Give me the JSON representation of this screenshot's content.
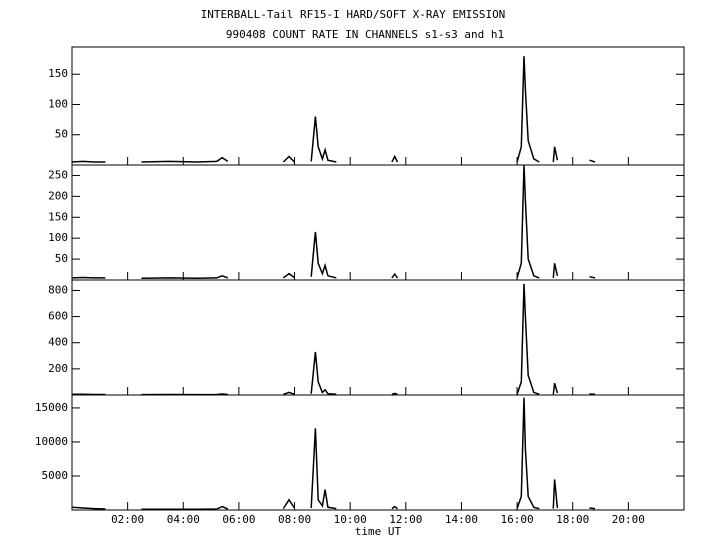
{
  "chart_data": [
    {
      "type": "line",
      "title": "INTERBALL-Tail RF15-I HARD/SOFT X-RAY EMISSION",
      "subtitle": "990408  COUNT RATE IN CHANNELS s1-s3 and h1",
      "color": "#000000",
      "x": [
        0.0,
        0.4,
        0.8,
        1.2,
        1.6,
        2.5,
        3.5,
        4.5,
        5.2,
        5.4,
        5.6,
        6.0,
        7.6,
        7.8,
        8.0,
        8.3,
        8.6,
        8.75,
        8.85,
        9.0,
        9.1,
        9.2,
        9.5,
        9.8,
        11.5,
        11.6,
        11.7,
        12.0,
        16.0,
        16.15,
        16.25,
        16.3,
        16.4,
        16.6,
        16.8,
        17.0,
        17.3,
        17.35,
        17.45,
        17.6,
        18.6,
        18.8
      ],
      "values": [
        5,
        6,
        5,
        5,
        null,
        5,
        6,
        5,
        6,
        12,
        6,
        null,
        5,
        14,
        5,
        null,
        6,
        80,
        30,
        10,
        25,
        8,
        5,
        null,
        5,
        14,
        5,
        null,
        5,
        30,
        180,
        125,
        40,
        10,
        5,
        null,
        5,
        30,
        8,
        null,
        8,
        5
      ],
      "xlim": [
        0,
        22
      ],
      "ylim": [
        0,
        195
      ],
      "yticks": [
        50,
        100,
        150
      ]
    },
    {
      "type": "line",
      "color": "#000000",
      "x": [
        0.0,
        0.4,
        0.8,
        1.2,
        1.6,
        2.5,
        3.5,
        4.5,
        5.2,
        5.4,
        5.6,
        6.0,
        7.6,
        7.8,
        8.0,
        8.3,
        8.6,
        8.75,
        8.85,
        9.0,
        9.1,
        9.2,
        9.5,
        9.8,
        11.5,
        11.6,
        11.7,
        12.0,
        16.0,
        16.15,
        16.25,
        16.3,
        16.4,
        16.6,
        16.8,
        17.0,
        17.3,
        17.35,
        17.45,
        17.6,
        18.6,
        18.8
      ],
      "values": [
        5,
        6,
        5,
        5,
        null,
        4,
        5,
        4,
        5,
        10,
        5,
        null,
        5,
        15,
        6,
        null,
        8,
        115,
        40,
        15,
        35,
        10,
        5,
        null,
        5,
        14,
        5,
        null,
        5,
        40,
        275,
        190,
        50,
        10,
        5,
        null,
        5,
        40,
        10,
        null,
        8,
        5
      ],
      "xlim": [
        0,
        22
      ],
      "ylim": [
        0,
        275
      ],
      "yticks": [
        50,
        100,
        150,
        200,
        250
      ]
    },
    {
      "type": "line",
      "color": "#000000",
      "x": [
        0.0,
        0.4,
        0.8,
        1.2,
        1.6,
        2.5,
        3.5,
        4.5,
        5.2,
        5.4,
        5.6,
        6.0,
        7.6,
        7.8,
        8.0,
        8.3,
        8.6,
        8.75,
        8.85,
        9.0,
        9.1,
        9.2,
        9.5,
        9.8,
        11.5,
        11.6,
        11.7,
        12.0,
        16.0,
        16.15,
        16.25,
        16.3,
        16.4,
        16.6,
        16.8,
        17.0,
        17.3,
        17.35,
        17.45,
        17.6,
        18.6,
        18.8
      ],
      "values": [
        5,
        5,
        4,
        4,
        null,
        3,
        4,
        3,
        4,
        8,
        4,
        null,
        5,
        20,
        6,
        null,
        10,
        330,
        100,
        20,
        40,
        10,
        5,
        null,
        5,
        12,
        5,
        null,
        5,
        100,
        850,
        600,
        150,
        20,
        5,
        null,
        5,
        90,
        15,
        null,
        8,
        5
      ],
      "xlim": [
        0,
        22
      ],
      "ylim": [
        0,
        880
      ],
      "yticks": [
        200,
        400,
        600,
        800
      ]
    },
    {
      "type": "line",
      "color": "#000000",
      "xlabel": "time UT",
      "x": [
        0.0,
        0.4,
        0.8,
        1.2,
        1.6,
        2.5,
        3.5,
        4.5,
        5.2,
        5.4,
        5.6,
        6.0,
        7.6,
        7.8,
        8.0,
        8.3,
        8.6,
        8.75,
        8.85,
        9.0,
        9.1,
        9.2,
        9.5,
        9.8,
        11.5,
        11.6,
        11.7,
        12.0,
        16.0,
        16.15,
        16.25,
        16.3,
        16.4,
        16.6,
        16.8,
        17.0,
        17.3,
        17.35,
        17.45,
        17.6,
        18.6,
        18.8
      ],
      "values": [
        400,
        300,
        200,
        150,
        null,
        100,
        100,
        100,
        150,
        500,
        150,
        null,
        200,
        1500,
        300,
        null,
        300,
        12000,
        1500,
        600,
        3000,
        400,
        200,
        null,
        200,
        500,
        200,
        null,
        200,
        2000,
        16500,
        9000,
        2000,
        400,
        200,
        null,
        200,
        4500,
        300,
        null,
        300,
        200
      ],
      "xlim": [
        0,
        22
      ],
      "ylim": [
        0,
        16900
      ],
      "yticks": [
        5000,
        10000,
        15000
      ],
      "xticks": [
        {
          "value": 2,
          "label": "02:00"
        },
        {
          "value": 4,
          "label": "04:00"
        },
        {
          "value": 6,
          "label": "06:00"
        },
        {
          "value": 8,
          "label": "08:00"
        },
        {
          "value": 10,
          "label": "10:00"
        },
        {
          "value": 12,
          "label": "12:00"
        },
        {
          "value": 14,
          "label": "14:00"
        },
        {
          "value": 16,
          "label": "16:00"
        },
        {
          "value": 18,
          "label": "18:00"
        },
        {
          "value": 20,
          "label": "20:00"
        }
      ]
    }
  ]
}
